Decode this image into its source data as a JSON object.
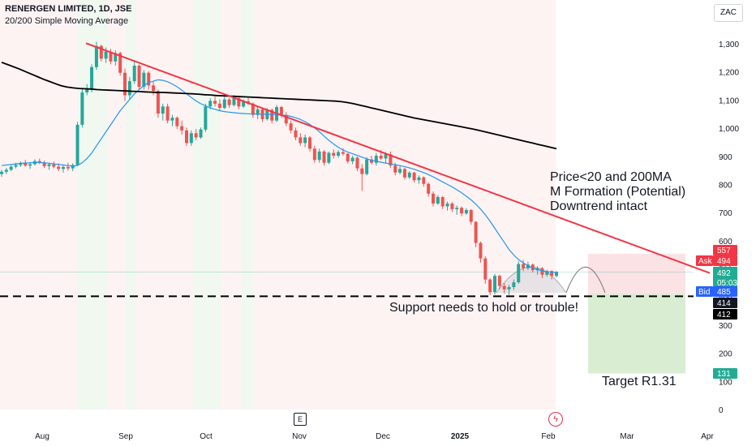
{
  "header": {
    "title": "RENERGEN LIMITED, 1D, JSE",
    "subtitle": "20/200 Simple Moving Average"
  },
  "currency": "ZAC",
  "annotations": {
    "main": [
      "Price<20 and 200MA",
      "M Formation (Potential)",
      "Downtrend intact"
    ],
    "support": "Support needs to hold or trouble!",
    "target": "Target R1.31"
  },
  "icons": {
    "earnings": "E",
    "flash": "lightning-icon"
  },
  "chart_data": {
    "type": "candlestick",
    "x_ticks": [
      "Aug",
      "Sep",
      "Oct",
      "Nov",
      "Dec",
      "2025",
      "Feb",
      "Mar",
      "Apr"
    ],
    "y_ticks": [
      0,
      100,
      200,
      300,
      400,
      500,
      600,
      700,
      800,
      900,
      1000,
      1100,
      1200,
      1300
    ],
    "y_tick_labels": [
      "0",
      "100",
      "200",
      "300",
      "400",
      "500",
      "600",
      "700",
      "800",
      "900",
      "1,000",
      "1,100",
      "1,200",
      "1,300"
    ],
    "ylim": [
      0,
      1420
    ],
    "colors": {
      "up": "#26a69a",
      "down": "#ef5350",
      "sma20": "#2196f3",
      "sma200": "#000000",
      "trendline": "#f23645",
      "support": "#000000"
    },
    "support_level": 414,
    "target_level": 131,
    "trendline": {
      "from": 1305,
      "to_price_at_right": 488
    },
    "price_tags": [
      {
        "label": "",
        "value": "557",
        "color": "#f23645"
      },
      {
        "label": "Ask",
        "value": "494",
        "color": "#f23645"
      },
      {
        "label": "",
        "value": "492",
        "sub": "05:03:18",
        "color": "#22ab94"
      },
      {
        "label": "Bid",
        "value": "485",
        "color": "#2962ff"
      },
      {
        "label": "",
        "value": "414",
        "color": "#131722"
      },
      {
        "label": "",
        "value": "412",
        "color": "#000000"
      },
      {
        "label": "",
        "value": "131",
        "color": "#22ab94"
      }
    ],
    "candles": [
      [
        840,
        855,
        830,
        848
      ],
      [
        848,
        862,
        840,
        855
      ],
      [
        855,
        872,
        850,
        866
      ],
      [
        866,
        880,
        860,
        872
      ],
      [
        872,
        885,
        865,
        878
      ],
      [
        878,
        890,
        866,
        870
      ],
      [
        870,
        882,
        858,
        875
      ],
      [
        875,
        892,
        870,
        886
      ],
      [
        886,
        895,
        875,
        880
      ],
      [
        880,
        888,
        862,
        868
      ],
      [
        868,
        880,
        855,
        874
      ],
      [
        874,
        885,
        860,
        866
      ],
      [
        866,
        878,
        850,
        858
      ],
      [
        858,
        872,
        845,
        865
      ],
      [
        865,
        880,
        852,
        860
      ],
      [
        860,
        878,
        850,
        872
      ],
      [
        872,
        1025,
        870,
        1015
      ],
      [
        1015,
        1145,
        1005,
        1130
      ],
      [
        1130,
        1160,
        1120,
        1140
      ],
      [
        1140,
        1230,
        1130,
        1220
      ],
      [
        1220,
        1310,
        1210,
        1295
      ],
      [
        1295,
        1300,
        1240,
        1250
      ],
      [
        1250,
        1290,
        1235,
        1275
      ],
      [
        1275,
        1285,
        1230,
        1240
      ],
      [
        1240,
        1280,
        1225,
        1270
      ],
      [
        1270,
        1275,
        1190,
        1200
      ],
      [
        1200,
        1215,
        1100,
        1120
      ],
      [
        1120,
        1185,
        1105,
        1170
      ],
      [
        1170,
        1240,
        1160,
        1225
      ],
      [
        1225,
        1230,
        1140,
        1150
      ],
      [
        1150,
        1210,
        1140,
        1200
      ],
      [
        1200,
        1205,
        1140,
        1155
      ],
      [
        1155,
        1170,
        1120,
        1135
      ],
      [
        1135,
        1140,
        1040,
        1055
      ],
      [
        1055,
        1090,
        1030,
        1080
      ],
      [
        1080,
        1090,
        1020,
        1030
      ],
      [
        1030,
        1050,
        1010,
        1040
      ],
      [
        1040,
        1045,
        1000,
        1010
      ],
      [
        1010,
        1030,
        980,
        995
      ],
      [
        995,
        1005,
        940,
        950
      ],
      [
        950,
        995,
        940,
        985
      ],
      [
        985,
        1000,
        960,
        970
      ],
      [
        970,
        1005,
        965,
        998
      ],
      [
        998,
        1090,
        990,
        1080
      ],
      [
        1080,
        1110,
        1070,
        1100
      ],
      [
        1100,
        1115,
        1080,
        1090
      ],
      [
        1090,
        1105,
        1065,
        1075
      ],
      [
        1075,
        1115,
        1070,
        1105
      ],
      [
        1105,
        1110,
        1075,
        1085
      ],
      [
        1085,
        1120,
        1080,
        1110
      ],
      [
        1110,
        1115,
        1070,
        1080
      ],
      [
        1080,
        1105,
        1075,
        1098
      ],
      [
        1098,
        1110,
        1085,
        1090
      ],
      [
        1090,
        1095,
        1040,
        1050
      ],
      [
        1050,
        1080,
        1035,
        1070
      ],
      [
        1070,
        1075,
        1025,
        1035
      ],
      [
        1035,
        1075,
        1030,
        1068
      ],
      [
        1068,
        1072,
        1020,
        1030
      ],
      [
        1030,
        1085,
        1025,
        1078
      ],
      [
        1078,
        1082,
        1040,
        1050
      ],
      [
        1050,
        1060,
        1010,
        1020
      ],
      [
        1020,
        1030,
        985,
        995
      ],
      [
        995,
        1005,
        960,
        970
      ],
      [
        970,
        985,
        940,
        950
      ],
      [
        950,
        980,
        935,
        970
      ],
      [
        970,
        975,
        920,
        930
      ],
      [
        930,
        940,
        880,
        890
      ],
      [
        890,
        930,
        880,
        920
      ],
      [
        920,
        925,
        870,
        880
      ],
      [
        880,
        920,
        875,
        915
      ],
      [
        915,
        928,
        895,
        905
      ],
      [
        905,
        925,
        898,
        918
      ],
      [
        918,
        932,
        905,
        912
      ],
      [
        912,
        915,
        878,
        885
      ],
      [
        885,
        905,
        875,
        898
      ],
      [
        898,
        902,
        850,
        860
      ],
      [
        860,
        875,
        780,
        840
      ],
      [
        840,
        900,
        835,
        892
      ],
      [
        892,
        905,
        875,
        880
      ],
      [
        880,
        915,
        870,
        905
      ],
      [
        905,
        925,
        890,
        895
      ],
      [
        895,
        918,
        880,
        910
      ],
      [
        910,
        920,
        862,
        870
      ],
      [
        870,
        880,
        835,
        845
      ],
      [
        845,
        870,
        838,
        858
      ],
      [
        858,
        862,
        820,
        828
      ],
      [
        828,
        850,
        822,
        845
      ],
      [
        845,
        848,
        810,
        818
      ],
      [
        818,
        835,
        805,
        828
      ],
      [
        828,
        832,
        795,
        805
      ],
      [
        805,
        810,
        760,
        770
      ],
      [
        770,
        778,
        725,
        735
      ],
      [
        735,
        765,
        730,
        758
      ],
      [
        758,
        762,
        715,
        725
      ],
      [
        725,
        742,
        710,
        735
      ],
      [
        735,
        740,
        705,
        715
      ],
      [
        715,
        728,
        695,
        720
      ],
      [
        720,
        725,
        690,
        700
      ],
      [
        700,
        718,
        695,
        712
      ],
      [
        712,
        715,
        660,
        670
      ],
      [
        670,
        672,
        580,
        595
      ],
      [
        595,
        600,
        525,
        540
      ],
      [
        540,
        548,
        450,
        465
      ],
      [
        465,
        470,
        410,
        420
      ],
      [
        420,
        485,
        412,
        478
      ],
      [
        478,
        482,
        430,
        442
      ],
      [
        442,
        452,
        415,
        430
      ],
      [
        430,
        445,
        410,
        438
      ],
      [
        438,
        465,
        428,
        455
      ],
      [
        455,
        530,
        450,
        520
      ],
      [
        520,
        535,
        495,
        505
      ],
      [
        505,
        528,
        498,
        518
      ],
      [
        518,
        522,
        490,
        498
      ],
      [
        498,
        512,
        482,
        505
      ],
      [
        505,
        510,
        470,
        482
      ],
      [
        482,
        500,
        475,
        495
      ],
      [
        495,
        498,
        465,
        478
      ],
      [
        478,
        495,
        472,
        492
      ]
    ],
    "sma20_values": [
      870,
      872,
      874,
      876,
      878,
      879,
      880,
      881,
      881,
      880,
      878,
      876,
      874,
      872,
      870,
      868,
      870,
      880,
      895,
      915,
      940,
      965,
      990,
      1015,
      1040,
      1065,
      1085,
      1105,
      1125,
      1140,
      1155,
      1165,
      1170,
      1175,
      1173,
      1168,
      1160,
      1150,
      1138,
      1125,
      1112,
      1100,
      1090,
      1082,
      1075,
      1070,
      1065,
      1062,
      1060,
      1058,
      1056,
      1055,
      1054,
      1054,
      1053,
      1053,
      1052,
      1052,
      1051,
      1050,
      1048,
      1045,
      1040,
      1034,
      1026,
      1016,
      1004,
      990,
      975,
      960,
      947,
      935,
      925,
      918,
      912,
      906,
      900,
      894,
      889,
      885,
      882,
      879,
      876,
      873,
      870,
      866,
      862,
      857,
      851,
      845,
      838,
      830,
      821,
      812,
      803,
      794,
      784,
      773,
      761,
      748,
      733,
      715,
      695,
      672,
      647,
      622,
      597,
      572,
      552,
      536,
      524,
      514,
      506,
      500,
      496,
      493,
      491,
      490
    ],
    "sma200_values": [
      1237,
      1229,
      1221,
      1213,
      1204,
      1195,
      1186,
      1177,
      1169,
      1161,
      1154,
      1149,
      1146,
      1144,
      1143,
      1142,
      1140,
      1139,
      1138,
      1137,
      1136,
      1135,
      1134,
      1133,
      1132,
      1131,
      1130,
      1130,
      1129,
      1128,
      1127,
      1126,
      1125,
      1124,
      1122,
      1121,
      1119,
      1118,
      1117,
      1116,
      1115,
      1114,
      1113,
      1112,
      1111,
      1110,
      1109,
      1108,
      1107,
      1106,
      1105,
      1104,
      1103,
      1102,
      1101,
      1100,
      1099,
      1097,
      1094,
      1090,
      1085,
      1080,
      1075,
      1070,
      1065,
      1060,
      1055,
      1050,
      1045,
      1040,
      1036,
      1032,
      1028,
      1024,
      1020,
      1016,
      1012,
      1008,
      1004,
      1000,
      995,
      990,
      985,
      980,
      975,
      970,
      965,
      960,
      955,
      950,
      945,
      940,
      935,
      930
    ]
  }
}
